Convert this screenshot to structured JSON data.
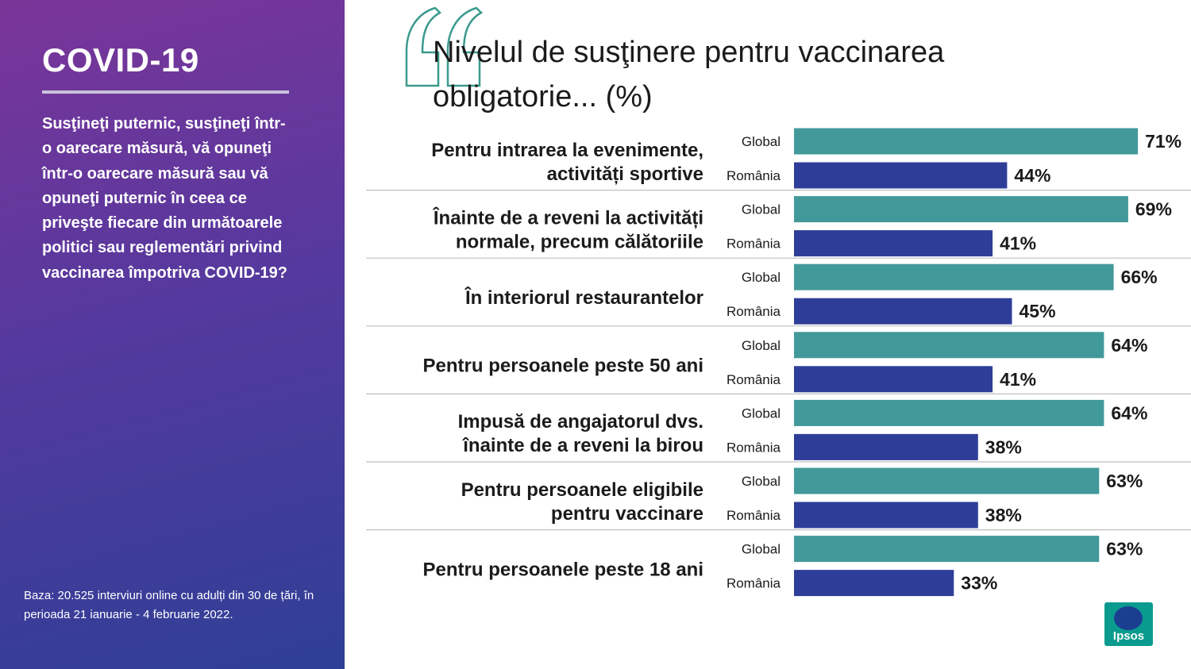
{
  "sidebar": {
    "title": "COVID-19",
    "question": "Susţineţi puternic, susţineţi într-o oarecare măsură, vă opuneţi într-o oarecare măsură sau vă opuneţi puternic în ceea ce priveşte fiecare din următoarele politici sau reglementări privind vaccinarea împotriva COVID-19?",
    "base_note": "Baza: 20.525 interviuri online cu adulți din 30 de țări, în perioada 21 ianuarie - 4 februarie 2022."
  },
  "logo": {
    "text": "Ipsos"
  },
  "colors": {
    "global": "#42999a",
    "romania": "#2e3e98",
    "text": "#1b1b1b",
    "separator": "#bfbfbf"
  },
  "chart_data": {
    "type": "bar",
    "orientation": "horizontal",
    "title": "Nivelul de susţinere pentru vaccinarea obligatorie... (%)",
    "value_suffix": "%",
    "categories": [
      [
        "Pentru intrarea la evenimente,",
        "activități sportive"
      ],
      [
        "Înainte de a reveni la activități",
        "normale, precum călătoriile"
      ],
      [
        "În interiorul restaurantelor"
      ],
      [
        "Pentru persoanele peste 50 ani"
      ],
      [
        "Impusă de angajatorul dvs.",
        "înainte de a reveni la birou"
      ],
      [
        "Pentru persoanele eligibile",
        "pentru vaccinare"
      ],
      [
        "Pentru persoanele peste 18 ani"
      ]
    ],
    "series": [
      {
        "name": "Global",
        "color": "#42999a",
        "values": [
          71,
          69,
          66,
          64,
          64,
          63,
          63
        ]
      },
      {
        "name": "România",
        "color": "#2e3e98",
        "values": [
          44,
          41,
          45,
          41,
          38,
          38,
          33
        ]
      }
    ]
  }
}
